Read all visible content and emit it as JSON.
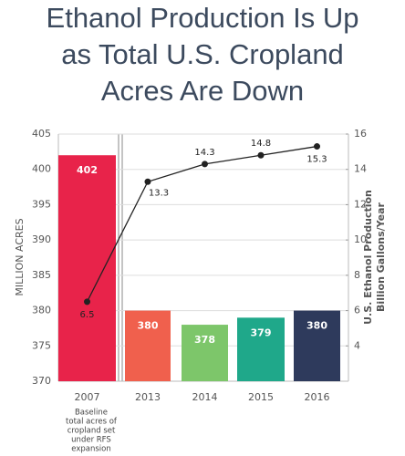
{
  "chart_data": {
    "type": "bar",
    "title": [
      "Ethanol Production Is Up",
      "as Total U.S. Cropland",
      "Acres Are Down"
    ],
    "ylabel": "MILLION ACRES",
    "y2label": [
      "U.S. Ethanol Production",
      "Billion Gallons/Year"
    ],
    "categories": [
      "2007",
      "2013",
      "2014",
      "2015",
      "2016"
    ],
    "note": [
      "Baseline",
      "total acres of",
      "cropland set",
      "under RFS",
      "expansion"
    ],
    "values": [
      402,
      380,
      378,
      379,
      380
    ],
    "colors": [
      "#e8234a",
      "#f0604d",
      "#7dc66a",
      "#1fa88a",
      "#2e3a5c"
    ],
    "line": {
      "values": [
        6.5,
        13.3,
        14.3,
        14.8,
        15.3
      ],
      "axis": "y2",
      "color": "#222222"
    },
    "ylim": [
      370,
      405
    ],
    "yticks": [
      370,
      375,
      380,
      385,
      390,
      395,
      400,
      405
    ],
    "y2lim": [
      2,
      16
    ],
    "y2ticks": [
      4,
      6,
      8,
      10,
      12,
      14,
      16
    ],
    "grid": true
  }
}
